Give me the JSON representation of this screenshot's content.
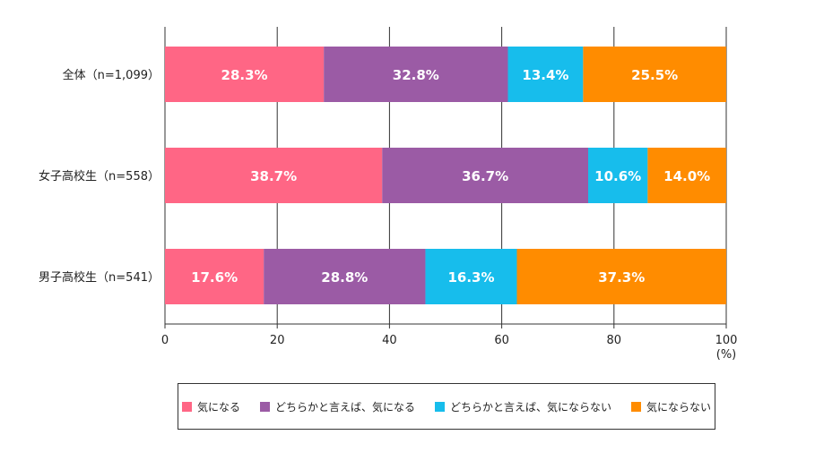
{
  "chart_data": {
    "type": "bar",
    "orientation": "horizontal",
    "stacked": true,
    "categories": [
      "全体（n=1,099）",
      "女子高校生（n=558）",
      "男子高校生（n=541）"
    ],
    "series": [
      {
        "name": "気になる",
        "color": "#FF6685",
        "values": [
          28.3,
          38.7,
          17.6
        ],
        "labels": [
          "28.3%",
          "38.7%",
          "17.6%"
        ]
      },
      {
        "name": "どちらかと言えば、気になる",
        "color": "#9B5BA5",
        "values": [
          32.8,
          36.7,
          28.8
        ],
        "labels": [
          "32.8%",
          "36.7%",
          "28.8%"
        ]
      },
      {
        "name": "どちらかと言えば、気にならない",
        "color": "#17BDEC",
        "values": [
          13.4,
          10.6,
          16.3
        ],
        "labels": [
          "13.4%",
          "10.6%",
          "16.3%"
        ]
      },
      {
        "name": "気にならない",
        "color": "#FF8C00",
        "values": [
          25.5,
          14.0,
          37.3
        ],
        "labels": [
          "25.5%",
          "14.0%",
          "37.3%"
        ]
      }
    ],
    "xlim": [
      0,
      100
    ],
    "xticks": [
      "0",
      "20",
      "40",
      "60",
      "80",
      "100"
    ],
    "xunit": "(%)",
    "grid": true,
    "legend_position": "bottom"
  }
}
